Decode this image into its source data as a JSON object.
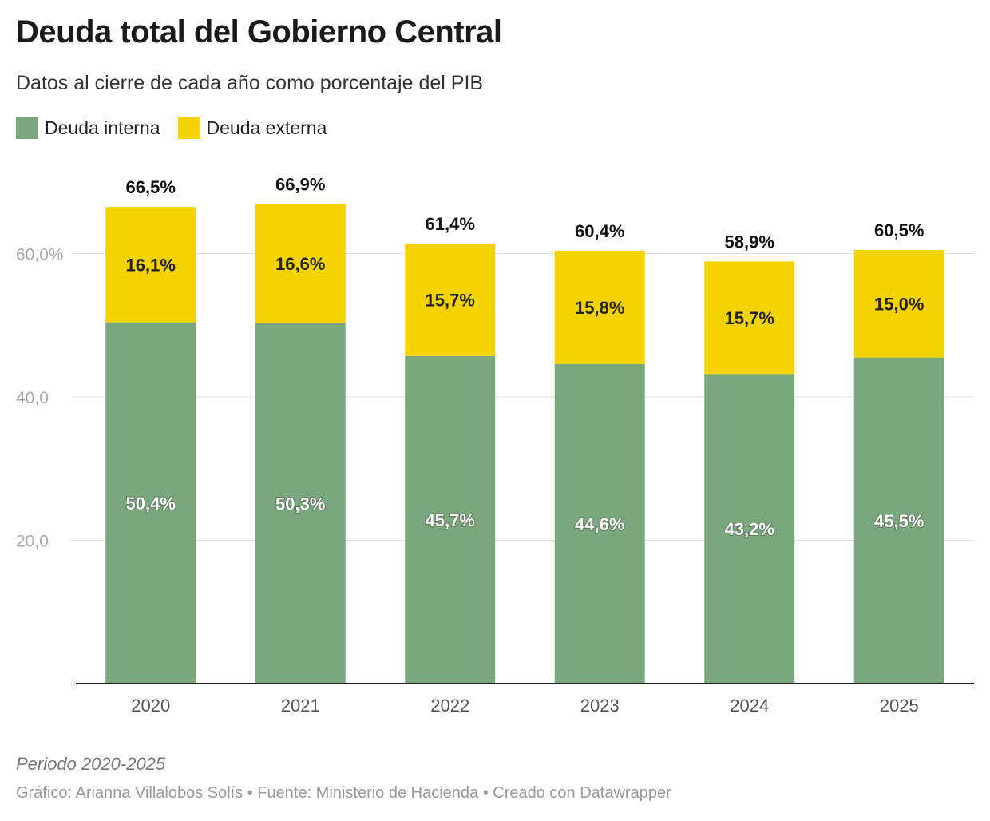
{
  "title": "Deuda total del Gobierno Central",
  "subtitle": "Datos al cierre de cada año como porcentaje del PIB",
  "notes": "Periodo 2020-2025",
  "footer": "Gráfico: Arianna Villalobos Solís • Fuente: Ministerio de Hacienda • Creado con Datawrapper",
  "chart_data": {
    "type": "bar",
    "stacked": true,
    "categories": [
      "2020",
      "2021",
      "2022",
      "2023",
      "2024",
      "2025"
    ],
    "series": [
      {
        "name": "Deuda interna",
        "color": "#7ba77e",
        "values": [
          50.4,
          50.3,
          45.7,
          44.6,
          43.2,
          45.5
        ],
        "labels": [
          "50,4%",
          "50,3%",
          "45,7%",
          "44,6%",
          "43,2%",
          "45,5%"
        ]
      },
      {
        "name": "Deuda externa",
        "color": "#f5d300",
        "values": [
          16.1,
          16.6,
          15.7,
          15.8,
          15.7,
          15.0
        ],
        "labels": [
          "16,1%",
          "16,6%",
          "15,7%",
          "15,8%",
          "15,7%",
          "15,0%"
        ]
      }
    ],
    "totals": [
      66.5,
      66.9,
      61.4,
      60.4,
      58.9,
      60.5
    ],
    "total_labels": [
      "66,5%",
      "66,9%",
      "61,4%",
      "60,4%",
      "58,9%",
      "60,5%"
    ],
    "yticks": [
      20,
      40,
      60
    ],
    "ytick_labels": [
      "20,0",
      "40,0",
      "60,0%"
    ],
    "ylim": [
      0,
      70
    ],
    "grid": true,
    "legend": "top-left"
  }
}
